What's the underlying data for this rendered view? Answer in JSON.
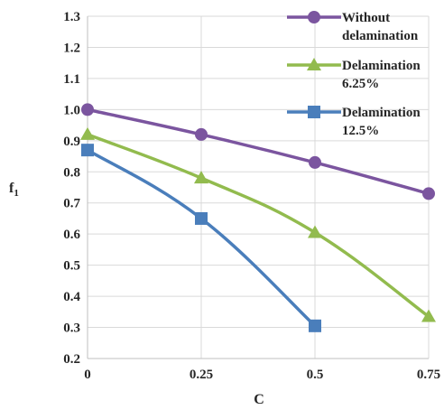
{
  "chart_data": {
    "type": "line",
    "xlabel": "C",
    "ylabel": "f",
    "ylabel_sub": "1",
    "x": [
      0,
      0.25,
      0.5,
      0.75
    ],
    "x_tick_labels": [
      "0",
      "0.25",
      "0.5",
      "0.75"
    ],
    "ylim": [
      0.2,
      1.3
    ],
    "y_ticks": [
      0.2,
      0.3,
      0.4,
      0.5,
      0.6,
      0.7,
      0.8,
      0.9,
      1.0,
      1.1,
      1.2,
      1.3
    ],
    "y_tick_labels": [
      "0.2",
      "0.3",
      "0.4",
      "0.5",
      "0.6",
      "0.7",
      "0.8",
      "0.9",
      "1.0",
      "1.1",
      "1.2",
      "1.3"
    ],
    "grid": true,
    "legend_position": "top-right",
    "series": [
      {
        "name_lines": [
          "Without",
          "delamination"
        ],
        "color": "#7B559F",
        "marker": "circle",
        "values": [
          1.0,
          0.92,
          0.83,
          0.73
        ]
      },
      {
        "name_lines": [
          "Delamination",
          "6.25%"
        ],
        "color": "#92BB4E",
        "marker": "triangle",
        "values": [
          0.92,
          0.78,
          0.605,
          0.335
        ]
      },
      {
        "name_lines": [
          "Delamination",
          "12.5%"
        ],
        "color": "#4A7EBB",
        "marker": "square",
        "values": [
          0.87,
          0.65,
          0.305,
          null
        ]
      }
    ]
  }
}
